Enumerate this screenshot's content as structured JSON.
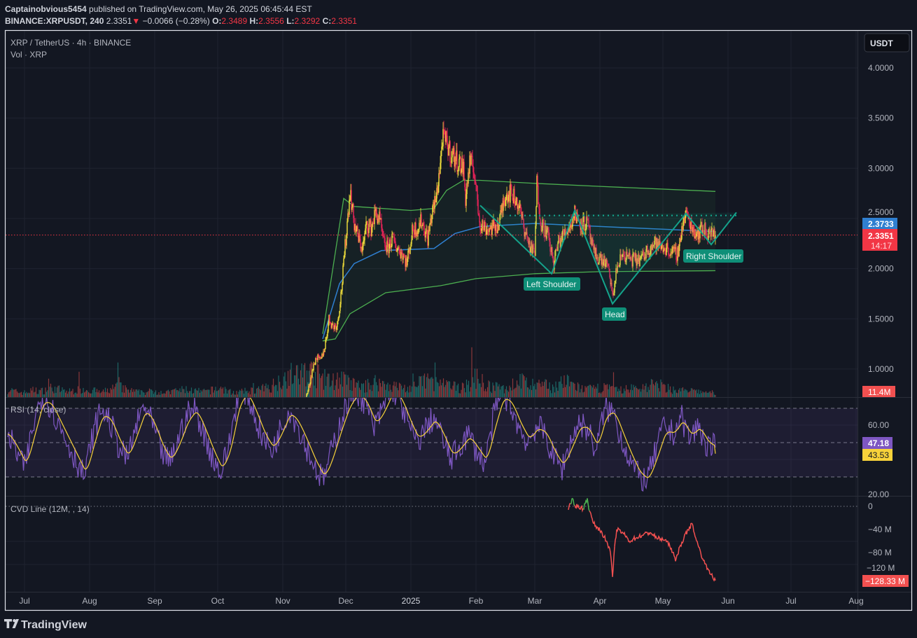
{
  "header": {
    "author": "Captainobvious5454",
    "published": "published on TradingView.com, May 26, 2025 06:45:44 EST",
    "symbol": "BINANCE:XRPUSDT, 240",
    "last": "2.3351",
    "change": "−0.0066 (−0.28%)",
    "o_label": "O:",
    "o": "2.3489",
    "h_label": "H:",
    "h": "2.3556",
    "l_label": "L:",
    "l": "2.3292",
    "c_label": "C:",
    "c": "2.3351"
  },
  "legend": {
    "main": "XRP / TetherUS · 4h · BINANCE",
    "volume": "Vol · XRP",
    "rsi": "RSI (14, close)",
    "cvd": "CVD Line (12M, , 14)"
  },
  "currency_button": "USDT",
  "price_axis": [
    "4.0000",
    "3.5000",
    "3.0000",
    "2.5000",
    "2.0000",
    "1.5000",
    "1.0000"
  ],
  "rsi_axis": [
    "60.00",
    "20.00"
  ],
  "cvd_axis": [
    "0",
    "−40 M",
    "−80 M",
    "−120 M"
  ],
  "time_axis": [
    "Jul",
    "Aug",
    "Sep",
    "Oct",
    "Nov",
    "Dec",
    "2025",
    "Feb",
    "Mar",
    "Apr",
    "May",
    "Jun",
    "Jul",
    "Aug"
  ],
  "badges": {
    "vwap": "2.3733",
    "price": "2.3351",
    "countdown": "14:17",
    "volume": "11.4M",
    "rsi": "47.18",
    "rsi_ma": "43.53",
    "cvd": "−128.33 M"
  },
  "annotations": {
    "left_shoulder": "Left Shoulder",
    "head": "Head",
    "right_shoulder": "Right Shoulder"
  },
  "logo": "TradingView",
  "colors": {
    "background": "#131722",
    "candle_up": "#f5e33b",
    "candle_down": "#f0245a",
    "band": "#4caf50",
    "vwap": "#2f7fd0",
    "pattern": "#14a38b",
    "rsi": "#7e57c2",
    "rsi_ma": "#f7d23a",
    "cvd_down": "#f25050",
    "cvd_up": "#4caf50",
    "vol_up": "#26a69a",
    "vol_down": "#ef5350"
  },
  "chart_data": [
    {
      "type": "candlestick",
      "title": "XRP / TetherUS · 4h · BINANCE",
      "ylim": [
        0.9,
        4.2
      ],
      "y_ticks": [
        1.0,
        1.5,
        2.0,
        2.5,
        3.0,
        3.5,
        4.0
      ],
      "grid": true,
      "close_points": [
        [
          "2024-11-08",
          0.56
        ],
        [
          "2024-11-11",
          0.66
        ],
        [
          "2024-11-13",
          0.78
        ],
        [
          "2024-11-15",
          0.98
        ],
        [
          "2024-11-17",
          1.12
        ],
        [
          "2024-11-19",
          1.08
        ],
        [
          "2024-11-21",
          1.22
        ],
        [
          "2024-11-23",
          1.5
        ],
        [
          "2024-11-25",
          1.42
        ],
        [
          "2024-11-27",
          1.45
        ],
        [
          "2024-11-29",
          1.8
        ],
        [
          "2024-12-01",
          2.3
        ],
        [
          "2024-12-03",
          2.78
        ],
        [
          "2024-12-05",
          2.45
        ],
        [
          "2024-12-07",
          2.3
        ],
        [
          "2024-12-09",
          2.2
        ],
        [
          "2024-12-11",
          2.45
        ],
        [
          "2024-12-13",
          2.4
        ],
        [
          "2024-12-15",
          2.55
        ],
        [
          "2024-12-17",
          2.5
        ],
        [
          "2024-12-19",
          2.25
        ],
        [
          "2024-12-21",
          2.2
        ],
        [
          "2024-12-23",
          2.3
        ],
        [
          "2024-12-25",
          2.22
        ],
        [
          "2024-12-28",
          2.15
        ],
        [
          "2024-12-30",
          2.05
        ],
        [
          "2025-01-02",
          2.4
        ],
        [
          "2025-01-04",
          2.4
        ],
        [
          "2025-01-06",
          2.48
        ],
        [
          "2025-01-09",
          2.3
        ],
        [
          "2025-01-11",
          2.55
        ],
        [
          "2025-01-13",
          2.7
        ],
        [
          "2025-01-15",
          3.05
        ],
        [
          "2025-01-16",
          3.3
        ],
        [
          "2025-01-18",
          3.25
        ],
        [
          "2025-01-20",
          3.15
        ],
        [
          "2025-01-22",
          3.1
        ],
        [
          "2025-01-24",
          3.05
        ],
        [
          "2025-01-26",
          3.0
        ],
        [
          "2025-01-27",
          2.7
        ],
        [
          "2025-01-29",
          3.05
        ],
        [
          "2025-01-31",
          3.0
        ],
        [
          "2025-02-02",
          2.6
        ],
        [
          "2025-02-03",
          2.45
        ],
        [
          "2025-02-06",
          2.4
        ],
        [
          "2025-02-09",
          2.4
        ],
        [
          "2025-02-12",
          2.45
        ],
        [
          "2025-02-15",
          2.75
        ],
        [
          "2025-02-18",
          2.75
        ],
        [
          "2025-02-21",
          2.65
        ],
        [
          "2025-02-24",
          2.4
        ],
        [
          "2025-02-27",
          2.2
        ],
        [
          "2025-03-01",
          2.15
        ],
        [
          "2025-03-02",
          2.85
        ],
        [
          "2025-03-04",
          2.45
        ],
        [
          "2025-03-07",
          2.35
        ],
        [
          "2025-03-10",
          2.05
        ],
        [
          "2025-03-12",
          2.25
        ],
        [
          "2025-03-15",
          2.35
        ],
        [
          "2025-03-18",
          2.45
        ],
        [
          "2025-03-20",
          2.55
        ],
        [
          "2025-03-23",
          2.45
        ],
        [
          "2025-03-26",
          2.45
        ],
        [
          "2025-03-29",
          2.15
        ],
        [
          "2025-04-01",
          2.1
        ],
        [
          "2025-04-04",
          2.05
        ],
        [
          "2025-04-06",
          1.9
        ],
        [
          "2025-04-07",
          1.7
        ],
        [
          "2025-04-09",
          2.0
        ],
        [
          "2025-04-12",
          2.15
        ],
        [
          "2025-04-15",
          2.1
        ],
        [
          "2025-04-18",
          2.08
        ],
        [
          "2025-04-21",
          2.1
        ],
        [
          "2025-04-24",
          2.2
        ],
        [
          "2025-04-27",
          2.25
        ],
        [
          "2025-04-30",
          2.22
        ],
        [
          "2025-05-03",
          2.2
        ],
        [
          "2025-05-06",
          2.15
        ],
        [
          "2025-05-08",
          2.15
        ],
        [
          "2025-05-10",
          2.4
        ],
        [
          "2025-05-12",
          2.55
        ],
        [
          "2025-05-14",
          2.45
        ],
        [
          "2025-05-17",
          2.35
        ],
        [
          "2025-05-20",
          2.4
        ],
        [
          "2025-05-23",
          2.35
        ],
        [
          "2025-05-26",
          2.3351
        ]
      ],
      "bands": {
        "upper": [
          [
            "2024-11-20",
            1.35
          ],
          [
            "2024-11-30",
            2.7
          ],
          [
            "2024-12-05",
            2.62
          ],
          [
            "2025-01-01",
            2.58
          ],
          [
            "2025-01-12",
            2.6
          ],
          [
            "2025-01-18",
            2.78
          ],
          [
            "2025-01-26",
            2.88
          ],
          [
            "2025-02-03",
            2.88
          ],
          [
            "2025-03-01",
            2.85
          ],
          [
            "2025-04-01",
            2.82
          ],
          [
            "2025-05-26",
            2.77
          ]
        ],
        "basis": [
          [
            "2024-11-20",
            1.3
          ],
          [
            "2024-11-28",
            1.85
          ],
          [
            "2024-12-05",
            2.05
          ],
          [
            "2024-12-18",
            2.18
          ],
          [
            "2025-01-12",
            2.2
          ],
          [
            "2025-01-22",
            2.35
          ],
          [
            "2025-02-03",
            2.42
          ],
          [
            "2025-03-01",
            2.45
          ],
          [
            "2025-04-01",
            2.42
          ],
          [
            "2025-05-26",
            2.37
          ]
        ],
        "lower": [
          [
            "2024-11-20",
            1.28
          ],
          [
            "2024-11-26",
            1.3
          ],
          [
            "2024-12-03",
            1.55
          ],
          [
            "2024-12-20",
            1.76
          ],
          [
            "2025-01-15",
            1.83
          ],
          [
            "2025-02-01",
            1.9
          ],
          [
            "2025-03-01",
            1.95
          ],
          [
            "2025-04-01",
            1.97
          ],
          [
            "2025-05-26",
            1.98
          ]
        ]
      },
      "pattern": {
        "name": "Head and Shoulders",
        "points": [
          [
            "2025-02-03",
            2.63
          ],
          [
            "2025-03-09",
            1.95
          ],
          [
            "2025-03-20",
            2.58
          ],
          [
            "2025-04-07",
            1.65
          ],
          [
            "2025-05-12",
            2.55
          ],
          [
            "2025-05-24",
            2.24
          ],
          [
            "2025-06-05",
            2.56
          ]
        ],
        "neckline": [
          [
            "2025-02-17",
            2.53
          ],
          [
            "2025-06-05",
            2.53
          ]
        ]
      },
      "last_price": 2.3351
    },
    {
      "type": "bar",
      "title": "Vol · XRP",
      "unit": "M",
      "start": "2024-06-23",
      "end": "2025-05-26",
      "values": [
        20,
        14,
        12,
        18,
        16,
        24,
        20,
        14,
        18,
        22,
        16,
        12,
        20,
        28,
        18,
        14,
        12,
        16,
        14,
        12,
        18,
        20,
        16,
        14,
        18,
        24,
        14,
        12,
        16,
        18,
        22,
        30,
        45,
        60,
        55,
        70,
        62,
        48,
        40,
        50,
        36,
        30,
        28,
        40,
        34,
        30,
        26,
        22,
        30,
        48,
        38,
        32,
        28,
        24,
        30,
        55,
        30,
        26,
        22,
        28,
        46,
        34,
        28,
        30,
        26,
        40,
        36,
        24,
        20,
        22,
        26,
        20,
        18,
        24,
        22,
        30,
        34,
        26,
        20,
        18,
        16,
        14,
        12,
        11.4
      ]
    },
    {
      "type": "line",
      "title": "RSI (14, close)",
      "ylim": [
        18,
        82
      ],
      "levels": [
        70,
        50,
        30
      ],
      "start": "2024-06-23",
      "end": "2025-05-26",
      "series": [
        {
          "values": [
            55,
            45,
            35,
            60,
            78,
            72,
            60,
            50,
            40,
            30,
            55,
            70,
            62,
            48,
            40,
            58,
            72,
            60,
            45,
            38,
            52,
            66,
            70,
            55,
            42,
            32,
            50,
            78,
            80,
            65,
            52,
            45,
            58,
            70,
            60,
            48,
            36,
            28,
            45,
            62,
            75,
            80,
            72,
            58,
            70,
            82,
            75,
            60,
            50,
            58,
            65,
            52,
            40,
            48,
            55,
            45,
            38,
            65,
            80,
            72,
            58,
            50,
            60,
            55,
            42,
            35,
            50,
            62,
            58,
            45,
            70,
            68,
            52,
            40,
            30,
            28,
            45,
            60,
            55,
            65,
            52,
            60,
            48,
            47.18
          ]
        }
      ],
      "last_rsi": 47.18,
      "last_ma": 43.53
    },
    {
      "type": "line",
      "title": "CVD Line (12M, , 14)",
      "unit": "M",
      "ylim": [
        -135,
        10
      ],
      "points": [
        [
          "2025-03-17",
          -6
        ],
        [
          "2025-03-18",
          4
        ],
        [
          "2025-03-19",
          14
        ],
        [
          "2025-03-20",
          2
        ],
        [
          "2025-03-24",
          -4
        ],
        [
          "2025-03-26",
          14
        ],
        [
          "2025-03-27",
          -8
        ],
        [
          "2025-03-29",
          -30
        ],
        [
          "2025-04-02",
          -45
        ],
        [
          "2025-04-04",
          -60
        ],
        [
          "2025-04-06",
          -80
        ],
        [
          "2025-04-07",
          -122
        ],
        [
          "2025-04-08",
          -70
        ],
        [
          "2025-04-09",
          -40
        ],
        [
          "2025-04-12",
          -46
        ],
        [
          "2025-04-15",
          -60
        ],
        [
          "2025-04-18",
          -55
        ],
        [
          "2025-04-21",
          -50
        ],
        [
          "2025-04-25",
          -45
        ],
        [
          "2025-04-28",
          -55
        ],
        [
          "2025-05-02",
          -58
        ],
        [
          "2025-05-05",
          -72
        ],
        [
          "2025-05-07",
          -95
        ],
        [
          "2025-05-09",
          -70
        ],
        [
          "2025-05-11",
          -55
        ],
        [
          "2025-05-13",
          -40
        ],
        [
          "2025-05-15",
          -30
        ],
        [
          "2025-05-17",
          -60
        ],
        [
          "2025-05-19",
          -80
        ],
        [
          "2025-05-21",
          -100
        ],
        [
          "2025-05-23",
          -110
        ],
        [
          "2025-05-25",
          -126
        ],
        [
          "2025-05-26",
          -128.33
        ]
      ]
    }
  ]
}
